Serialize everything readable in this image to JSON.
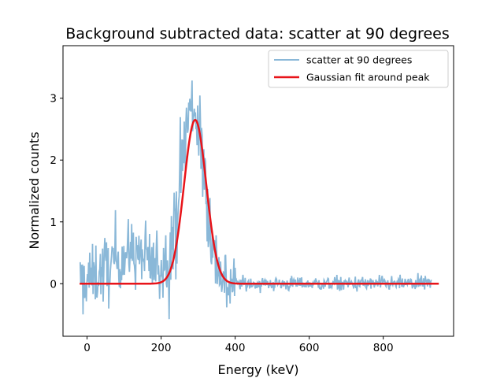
{
  "chart_data": {
    "type": "line",
    "title": "Background subtracted data: scatter at 90 degrees",
    "xlabel": "Energy (keV)",
    "ylabel": "Normalized counts",
    "xlim": [
      -65,
      990
    ],
    "ylim": [
      -0.85,
      3.85
    ],
    "xticks": [
      0,
      200,
      400,
      600,
      800
    ],
    "yticks": [
      0,
      1,
      2,
      3
    ],
    "grid": false,
    "legend_position": "upper right",
    "colors": {
      "data": "#8ab8d8",
      "fit": "#e8141a"
    },
    "series": [
      {
        "name": "scatter at 90 degrees",
        "role": "noisy-data",
        "x_range": [
          -20,
          930
        ],
        "num_points": 630,
        "peak_center": 285,
        "peak_sigma": 32,
        "peak_height": 2.85,
        "max_value": 3.65,
        "min_value": -0.65,
        "low_energy_bump": {
          "center": 120,
          "height": 0.5
        },
        "noise_below_400": 0.3,
        "noise_above_400": 0.06
      },
      {
        "name": "Gaussian fit around peak",
        "role": "fit",
        "x_range": [
          -20,
          950
        ],
        "amplitude": 2.65,
        "mean": 292,
        "sigma": 30
      }
    ]
  }
}
